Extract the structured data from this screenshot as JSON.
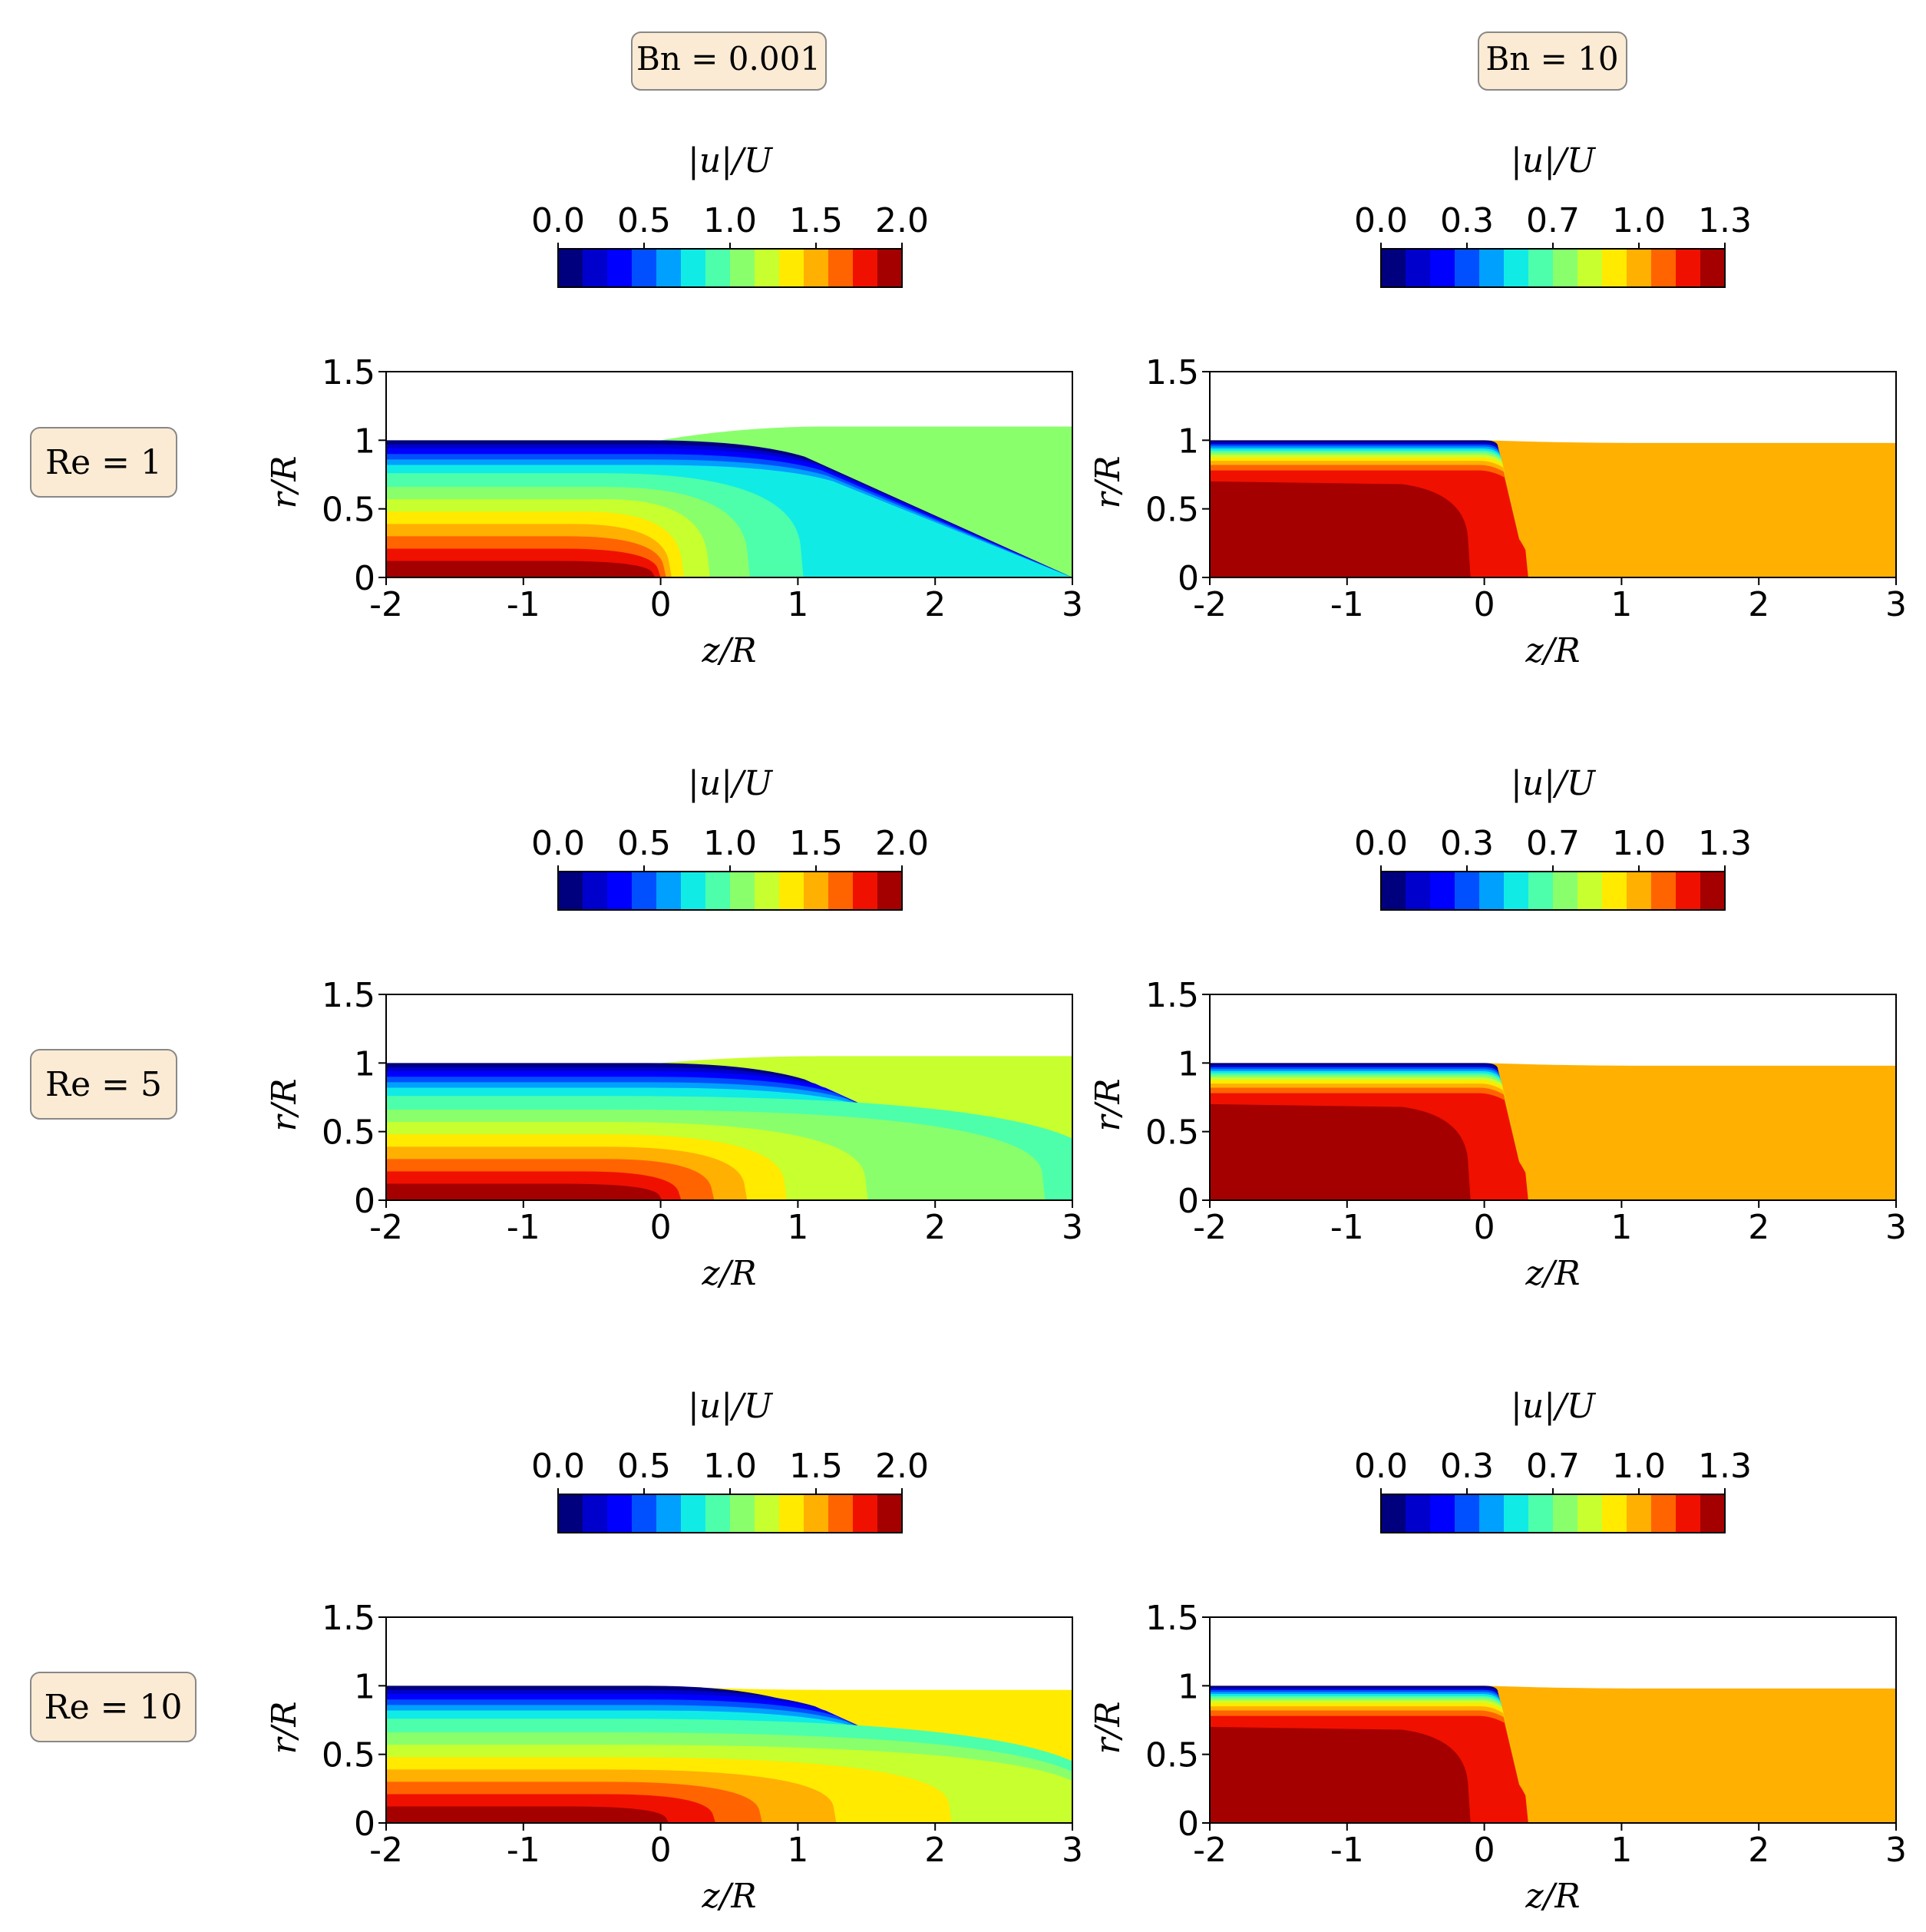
{
  "columns": [
    {
      "label": "Bn = 0.001"
    },
    {
      "label": "Bn = 10"
    }
  ],
  "rows": [
    {
      "label": "Re = 1"
    },
    {
      "label": "Re = 5"
    },
    {
      "label": "Re = 10"
    }
  ],
  "chart_data": {
    "type": "heatmap",
    "description_kind": "filled contour of normalized velocity magnitude",
    "colorbar_title": "|u|/U",
    "xlabel": "z/R",
    "ylabel": "r/R",
    "xlim": [
      -2,
      3
    ],
    "ylim": [
      0,
      1.5
    ],
    "x_ticks": [
      "-2",
      "-1",
      "0",
      "1",
      "2",
      "3"
    ],
    "y_ticks": [
      "0",
      "0.5",
      "1",
      "1.5"
    ],
    "colormap": [
      "#00007f",
      "#0000cd",
      "#0000ff",
      "#0050ff",
      "#00a0ff",
      "#10ebe6",
      "#4dffaa",
      "#8aff6c",
      "#c7ff2f",
      "#ffea00",
      "#ffb000",
      "#ff6400",
      "#f01000",
      "#a40000"
    ],
    "colorbars": [
      {
        "ticks": [
          "0.0",
          "0.5",
          "1.0",
          "1.5",
          "2.0"
        ],
        "range": [
          0.0,
          2.0
        ]
      },
      {
        "ticks": [
          "0.0",
          "0.3",
          "0.7",
          "1.0",
          "1.3"
        ],
        "range": [
          0.0,
          1.3
        ]
      }
    ],
    "panels": [
      {
        "row": 0,
        "col": 0,
        "re": 1,
        "bn": 0.001,
        "vmax": 2.0,
        "jet_radius_downstream": 1.1,
        "far_field_value": 0.9,
        "contour_shift": [
          0.0,
          0.0,
          0.0,
          0.0,
          0.0,
          0.05,
          0.2,
          0.45,
          0.8
        ]
      },
      {
        "row": 0,
        "col": 1,
        "re": 1,
        "bn": 10,
        "vmax": 1.3,
        "jet_radius_downstream": 0.98,
        "far_field_value": 1.0,
        "plug": true
      },
      {
        "row": 1,
        "col": 0,
        "re": 5,
        "bn": 0.001,
        "vmax": 2.0,
        "jet_radius_downstream": 1.05,
        "far_field_value": 1.0,
        "contour_shift": [
          0.0,
          0.05,
          0.15,
          0.35,
          0.55,
          0.8,
          1.35,
          2.6,
          3.0
        ]
      },
      {
        "row": 1,
        "col": 1,
        "re": 5,
        "bn": 10,
        "vmax": 1.3,
        "jet_radius_downstream": 0.98,
        "far_field_value": 1.0,
        "plug": true
      },
      {
        "row": 2,
        "col": 0,
        "re": 10,
        "bn": 0.001,
        "vmax": 2.0,
        "jet_radius_downstream": 0.97,
        "far_field_value": 1.2,
        "contour_shift": [
          0.0,
          0.1,
          0.4,
          0.7,
          1.2,
          2.0,
          3.0,
          3.0,
          3.0
        ]
      },
      {
        "row": 2,
        "col": 1,
        "re": 10,
        "bn": 10,
        "vmax": 1.3,
        "jet_radius_downstream": 0.98,
        "far_field_value": 1.0,
        "plug": true
      }
    ]
  }
}
